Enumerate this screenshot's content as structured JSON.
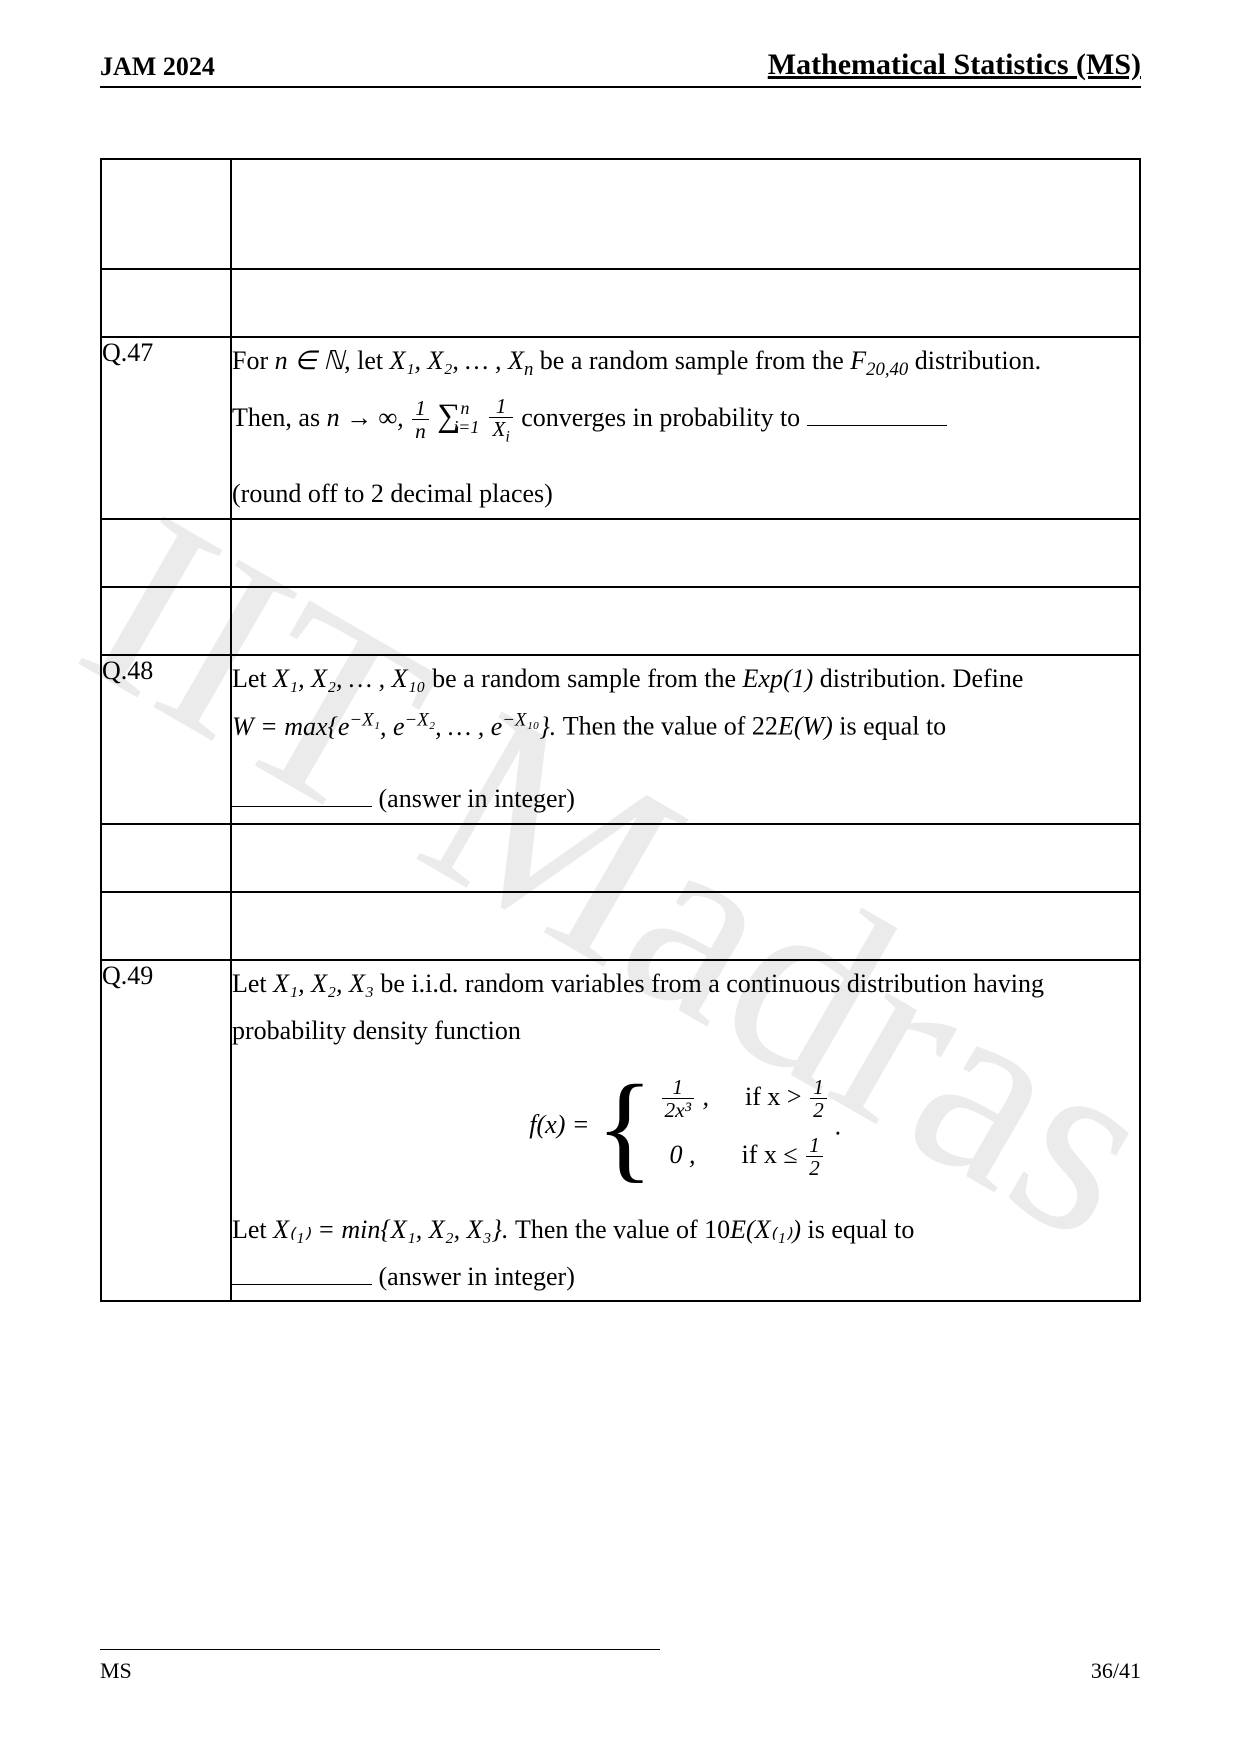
{
  "header": {
    "left": "JAM 2024",
    "right": "Mathematical Statistics (MS)"
  },
  "watermark": "IIT Madras",
  "questions": {
    "q47": {
      "number": "Q.47",
      "line1_a": "For ",
      "line1_b": ", let ",
      "line1_c": " be a random sample from the ",
      "line1_d": " distribution.",
      "line2_a": "Then, as ",
      "line2_b": " converges in probability to ",
      "hint": "(round off to 2 decimal places)",
      "math": {
        "n_in_N": "n ∈ ℕ",
        "sample": "X₁, X₂, … , X",
        "sample_sub_n": "n",
        "dist": "F",
        "dist_sub": "20,40",
        "limit": "n → ∞,",
        "frac1_num": "1",
        "frac1_den": "n",
        "sum": "∑",
        "sum_sup": "n",
        "sum_sub": "i=1",
        "frac2_num": "1",
        "frac2_den_a": "X",
        "frac2_den_sub": "i"
      }
    },
    "q48": {
      "number": "Q.48",
      "line1_a": "Let ",
      "line1_b": " be a random sample from the ",
      "line1_c": " distribution. Define",
      "line2_a": "Then the value of  22",
      "line2_b": " is equal to",
      "hint": "(answer in integer)",
      "math": {
        "sample": "X₁, X₂, … , X₁₀",
        "dist": "Exp(1)",
        "W_eq": "W = max{e",
        "exp1": "−X₁",
        "sep": ", e",
        "exp2": "−X₂",
        "dots": ", … , e",
        "exp10": "−X₁₀",
        "close": "}. ",
        "EW": "E(W)"
      }
    },
    "q49": {
      "number": "Q.49",
      "line1_a": "Let ",
      "line1_b": " be i.i.d. random variables from a continuous distribution having",
      "line2": "probability density function",
      "line3_a": "Let ",
      "line3_b": "Then the value of  10",
      "line3_c": " is equal to",
      "hint": "(answer in integer)",
      "math": {
        "sample": "X₁, X₂, X₃",
        "f_of_x": "f(x) = ",
        "case1_val_num": "1",
        "case1_val_den": "2x³",
        "case1_comma": " ,",
        "case1_cond_a": "if x > ",
        "half_num": "1",
        "half_den": "2",
        "case2_val": "0 ,",
        "case2_cond_a": "if x ≤ ",
        "period": " .",
        "Xmin_def": "X₍₁₎ = min{X₁, X₂, X₃}. ",
        "EX1": "E(X₍₁₎)"
      }
    }
  },
  "footer": {
    "left": "MS",
    "right": "36/41"
  }
}
